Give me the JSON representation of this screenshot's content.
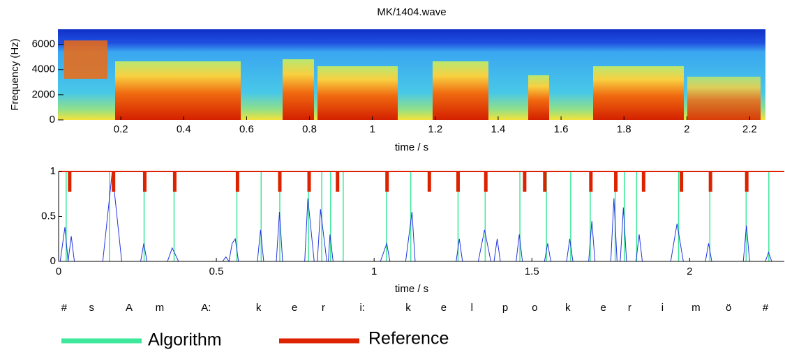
{
  "chart_data": [
    {
      "type": "spectrogram",
      "title": "MK/1404.wave",
      "x_label": "time / s",
      "y_label": "Frequency (Hz)",
      "xlim": [
        0,
        2.25
      ],
      "ylim": [
        0,
        7200
      ],
      "xticks": [
        0.2,
        0.4,
        0.6,
        0.8,
        1,
        1.2,
        1.4,
        1.6,
        1.8,
        2,
        2.2
      ],
      "yticks": [
        0,
        2000,
        4000,
        6000
      ]
    },
    {
      "type": "line",
      "x_label": "time / s",
      "xlim": [
        0,
        2.3
      ],
      "ylim": [
        0,
        1
      ],
      "xticks": [
        0,
        0.5,
        1,
        1.5,
        2
      ],
      "yticks": [
        0,
        0.5,
        1
      ],
      "series": [
        {
          "name": "Algorithm",
          "color": "#3de89a",
          "x": [
            0.024,
            0.161,
            0.271,
            0.366,
            0.565,
            0.642,
            0.701,
            0.792,
            0.834,
            0.862,
            0.902,
            1.039,
            1.116,
            1.266,
            1.352,
            1.462,
            1.546,
            1.623,
            1.685,
            1.764,
            1.793,
            1.832,
            1.965,
            2.064,
            2.179,
            2.251
          ]
        },
        {
          "name": "Reference",
          "color": "#dd2200",
          "x": [
            0.035,
            0.174,
            0.273,
            0.368,
            0.567,
            0.701,
            0.794,
            0.884,
            1.041,
            1.175,
            1.266,
            1.354,
            1.477,
            1.541,
            1.687,
            1.766,
            1.854,
            1.974,
            2.066,
            2.181
          ]
        }
      ],
      "curve": {
        "color": "#2233dd",
        "x": [
          0,
          0.005,
          0.02,
          0.03,
          0.04,
          0.05,
          0.14,
          0.17,
          0.2,
          0.26,
          0.27,
          0.28,
          0.345,
          0.36,
          0.38,
          0.52,
          0.53,
          0.54,
          0.55,
          0.56,
          0.57,
          0.63,
          0.64,
          0.65,
          0.69,
          0.7,
          0.71,
          0.78,
          0.79,
          0.81,
          0.82,
          0.83,
          0.85,
          0.855,
          0.86,
          0.87,
          1.02,
          1.04,
          1.05,
          1.1,
          1.12,
          1.13,
          1.26,
          1.27,
          1.28,
          1.33,
          1.35,
          1.37,
          1.38,
          1.39,
          1.4,
          1.45,
          1.46,
          1.47,
          1.54,
          1.55,
          1.56,
          1.61,
          1.62,
          1.63,
          1.68,
          1.69,
          1.7,
          1.75,
          1.76,
          1.77,
          1.78,
          1.79,
          1.8,
          1.83,
          1.84,
          1.85,
          1.94,
          1.96,
          1.98,
          2.05,
          2.06,
          2.07,
          2.17,
          2.18,
          2.19,
          2.24,
          2.25,
          2.26,
          2.3
        ],
        "values": [
          0,
          0,
          0.38,
          0,
          0.28,
          0,
          0,
          1,
          0,
          0,
          0.2,
          0,
          0,
          0.15,
          0,
          0,
          0.05,
          0,
          0.2,
          0.25,
          0,
          0,
          0.35,
          0,
          0,
          0.55,
          0,
          0,
          0.7,
          0,
          0,
          0.58,
          0,
          0,
          0.3,
          0,
          0,
          0.2,
          0,
          0,
          0.55,
          0,
          0,
          0.25,
          0,
          0,
          0.35,
          0,
          0,
          0.25,
          0,
          0,
          0.3,
          0,
          0,
          0.2,
          0,
          0,
          0.25,
          0,
          0,
          0.45,
          0,
          0,
          0.7,
          0,
          0,
          0.6,
          0,
          0,
          0.3,
          0,
          0,
          0.42,
          0,
          0,
          0.2,
          0,
          0,
          0.4,
          0,
          0,
          0.1,
          0,
          0
        ]
      },
      "segment_labels": [
        "#",
        "s",
        "A",
        "m",
        "A:",
        "k",
        "e",
        "r",
        "i:",
        "k",
        "e",
        "l",
        "p",
        "o",
        "k",
        "e",
        "r",
        "i",
        "m",
        "ö",
        "#"
      ]
    }
  ]
}
